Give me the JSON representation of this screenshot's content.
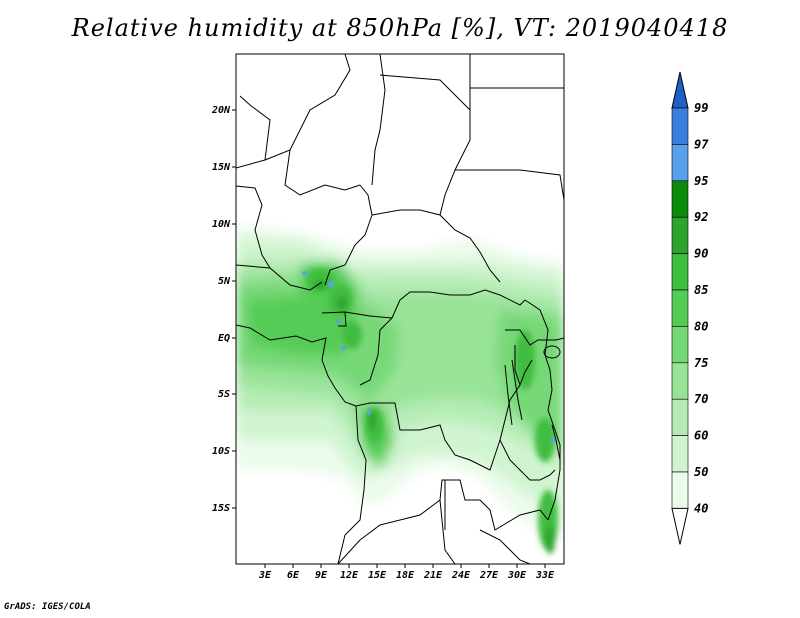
{
  "title": "Relative humidity at 850hPa [%], VT: 2019040418",
  "footer": "GrADS: IGES/COLA",
  "map": {
    "lat_labels": [
      "20N",
      "15N",
      "10N",
      "5N",
      "EQ",
      "5S",
      "10S",
      "15S"
    ],
    "lon_labels": [
      "3E",
      "6E",
      "9E",
      "12E",
      "15E",
      "18E",
      "21E",
      "24E",
      "27E",
      "30E",
      "33E"
    ]
  },
  "legend": {
    "levels": [
      "99",
      "97",
      "95",
      "92",
      "90",
      "85",
      "80",
      "75",
      "70",
      "60",
      "50",
      "40"
    ],
    "colors": [
      "#1f5fc8",
      "#3a7fdc",
      "#5aa0ec",
      "#0c8a0c",
      "#2ea42e",
      "#3fbd3f",
      "#55cc55",
      "#77d877",
      "#99e399",
      "#b5ecb5",
      "#d0f4d0",
      "#ebfbeb",
      "#ffffff"
    ]
  }
}
